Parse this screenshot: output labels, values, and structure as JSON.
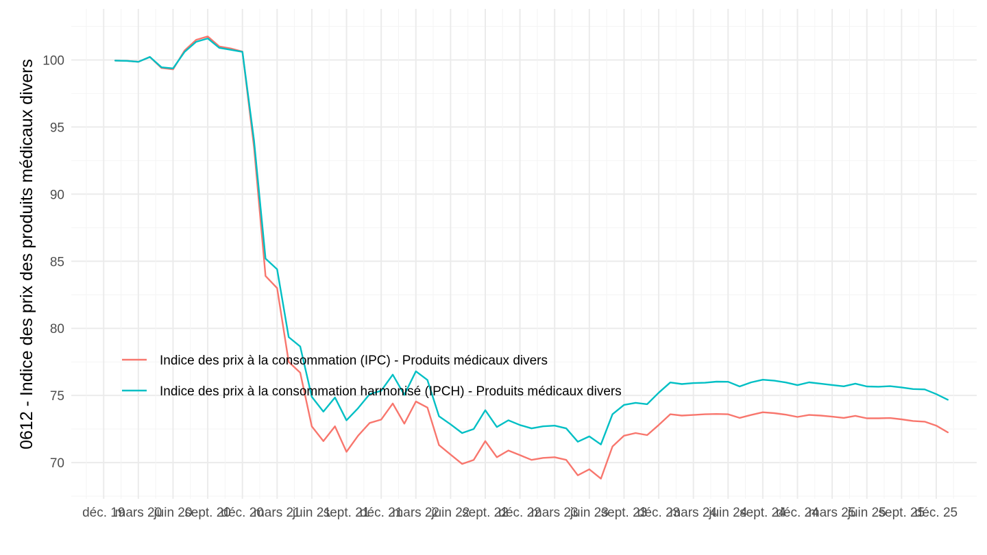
{
  "chart_data": {
    "type": "line",
    "ylabel": "0612 - Indice des prix des produits médicaux divers",
    "xlabel": "",
    "ylim": [
      67.3,
      103.8
    ],
    "y_ticks": [
      70,
      75,
      80,
      85,
      90,
      95,
      100
    ],
    "x_tick_labels": [
      "déc. 19",
      "mars 20",
      "juin 20",
      "sept. 20",
      "déc. 20",
      "mars 21",
      "juin 21",
      "sept. 21",
      "déc. 21",
      "mars 22",
      "juin 22",
      "sept. 22",
      "déc. 22",
      "mars 23",
      "juin 23",
      "sept. 23",
      "déc. 23",
      "mars 24",
      "juin 24",
      "sept. 24",
      "déc. 24",
      "mars 25",
      "juin 25",
      "sept. 25",
      "déc. 25"
    ],
    "x_tick_months": [
      0,
      3,
      6,
      9,
      12,
      15,
      18,
      21,
      24,
      27,
      30,
      33,
      36,
      39,
      42,
      45,
      48,
      51,
      54,
      57,
      60,
      63,
      66,
      69,
      72
    ],
    "x_start_month": 1,
    "legend_position": "bottom-left",
    "grid": true,
    "series": [
      {
        "name": "Indice des prix à la consommation (IPC) - Produits médicaux divers",
        "color": "#F8766D",
        "values": [
          99.95,
          99.93,
          99.86,
          100.22,
          99.4,
          99.3,
          100.7,
          101.5,
          101.75,
          101.0,
          100.85,
          100.62,
          93.5,
          83.9,
          83.0,
          77.5,
          76.7,
          72.7,
          71.6,
          72.7,
          70.8,
          72.0,
          72.95,
          73.2,
          74.4,
          72.9,
          74.55,
          74.1,
          71.3,
          70.6,
          69.9,
          70.2,
          71.6,
          70.4,
          70.9,
          70.55,
          70.2,
          70.35,
          70.4,
          70.2,
          69.05,
          69.5,
          68.8,
          71.2,
          72.0,
          72.2,
          72.05,
          72.8,
          73.6,
          73.5,
          73.55,
          73.6,
          73.62,
          73.6,
          73.33,
          73.55,
          73.75,
          73.68,
          73.57,
          73.4,
          73.55,
          73.5,
          73.42,
          73.33,
          73.48,
          73.3,
          73.3,
          73.32,
          73.22,
          73.1,
          73.05,
          72.75,
          72.25
        ]
      },
      {
        "name": "Indice des prix à la consommation harmonisé (IPCH) - Produits médicaux divers",
        "color": "#00BFC4",
        "values": [
          99.95,
          99.93,
          99.86,
          100.22,
          99.45,
          99.37,
          100.6,
          101.35,
          101.6,
          100.9,
          100.75,
          100.6,
          94.0,
          85.2,
          84.4,
          79.35,
          78.65,
          74.9,
          73.8,
          74.85,
          73.15,
          74.05,
          75.1,
          75.35,
          76.55,
          75.05,
          76.8,
          76.15,
          73.45,
          72.85,
          72.2,
          72.5,
          73.9,
          72.65,
          73.15,
          72.8,
          72.55,
          72.7,
          72.75,
          72.55,
          71.55,
          71.95,
          71.35,
          73.6,
          74.3,
          74.45,
          74.35,
          75.2,
          75.97,
          75.85,
          75.92,
          75.95,
          76.03,
          76.02,
          75.67,
          75.98,
          76.17,
          76.1,
          75.97,
          75.77,
          75.98,
          75.88,
          75.78,
          75.68,
          75.88,
          75.67,
          75.65,
          75.69,
          75.6,
          75.48,
          75.45,
          75.1,
          74.68
        ]
      }
    ]
  }
}
